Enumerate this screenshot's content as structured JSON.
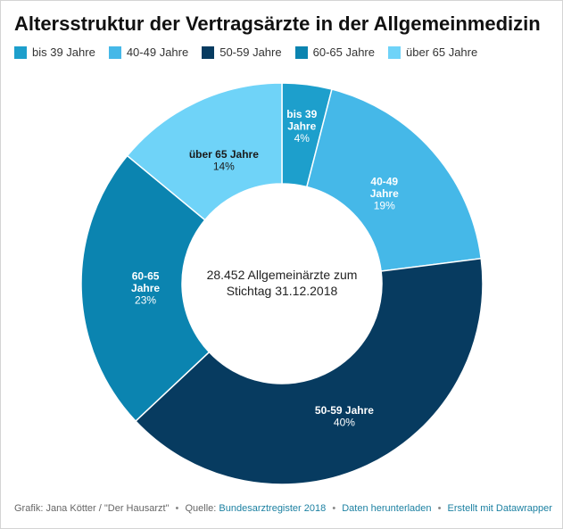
{
  "title": "Altersstruktur der Vertragsärzte in der Allgemeinmedizin",
  "center_text": [
    "28.452 Allgemeinärzte zum",
    "Stichtag 31.12.2018"
  ],
  "chart_data": {
    "type": "pie",
    "title": "Altersstruktur der Vertragsärzte in der Allgemeinmedizin",
    "donut": true,
    "unit": "%",
    "legend_position": "top-left",
    "categories": [
      "bis 39 Jahre",
      "40-49 Jahre",
      "50-59 Jahre",
      "60-65 Jahre",
      "über 65 Jahre"
    ],
    "values": [
      4,
      19,
      40,
      23,
      14
    ],
    "colors": [
      "#1d9fcc",
      "#45b8e8",
      "#073b60",
      "#0b84b0",
      "#6fd3f8"
    ],
    "slice_labels": [
      {
        "lines": [
          "bis 39",
          "Jahre"
        ],
        "value": "4%",
        "color": "#ffffff"
      },
      {
        "lines": [
          "40-49",
          "Jahre"
        ],
        "value": "19%",
        "color": "#ffffff"
      },
      {
        "lines": [
          "50-59 Jahre"
        ],
        "value": "40%",
        "color": "#ffffff"
      },
      {
        "lines": [
          "60-65",
          "Jahre"
        ],
        "value": "23%",
        "color": "#ffffff"
      },
      {
        "lines": [
          "über 65 Jahre"
        ],
        "value": "14%",
        "color": "#1a1a1a"
      }
    ]
  },
  "footer": {
    "credit": "Grafik: Jana Kötter / \"Der Hausarzt\"",
    "source_prefix": "Quelle:",
    "source_link": "Bundesarztregister 2018",
    "download_link": "Daten herunterladen",
    "made_with_link": "Erstellt mit Datawrapper"
  }
}
